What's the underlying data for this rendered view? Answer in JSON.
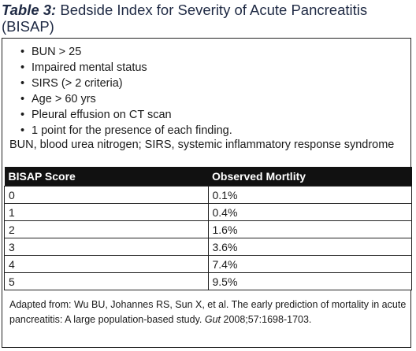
{
  "title": {
    "label": "Table 3:",
    "text": " Bedside Index for Severity of Acute Pancreatitis (BISAP)"
  },
  "criteria": [
    "BUN > 25",
    "Impaired mental status",
    "SIRS (> 2 criteria)",
    "Age > 60 yrs",
    "Pleural effusion on CT scan",
    "1 point for the presence of each finding."
  ],
  "abbreviations": "BUN, blood urea nitrogen; SIRS, systemic inflammatory response syndrome",
  "table": {
    "headers": [
      "BISAP Score",
      "Observed Mortlity"
    ],
    "rows": [
      [
        "0",
        "0.1%"
      ],
      [
        "1",
        "0.4%"
      ],
      [
        "2",
        "1.6%"
      ],
      [
        "3",
        "3.6%"
      ],
      [
        "4",
        "7.4%"
      ],
      [
        "5",
        "9.5%"
      ]
    ]
  },
  "footnote": {
    "before": "Adapted from: Wu BU, Johannes RS, Sun X, et al. The early prediction of mortality in acute pancreatitis: A large population-based study. ",
    "journal": "Gut",
    "after": " 2008;57:1698-1703."
  }
}
